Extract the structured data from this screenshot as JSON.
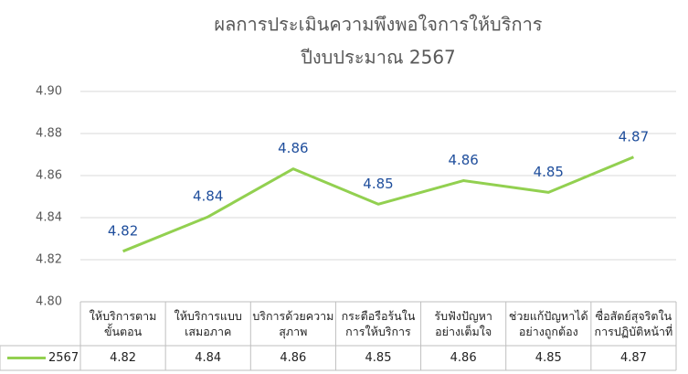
{
  "chart_data": {
    "type": "line",
    "title": "ผลการประเมินความพึงพอใจการให้บริการ",
    "subtitle": "ปีงบประมาณ 2567",
    "categories": [
      "ให้บริการตาม\nขั้นตอน",
      "ให้บริการแบบ\nเสมอภาค",
      "บริการด้วยความ\nสุภาพ",
      "กระตือรือร้นใน\nการให้บริการ",
      "รับฟังปัญหา\nอย่างเต็มใจ",
      "ช่วยแก้ปัญหาได้\nอย่างถูกต้อง",
      "ซื่อสัตย์สุจริตใน\nการปฏิบัติหน้าที่"
    ],
    "series": [
      {
        "name": "2567",
        "color": "#92d050",
        "values": [
          4.824,
          4.8404,
          4.8632,
          4.8464,
          4.8576,
          4.852,
          4.8688
        ],
        "value_labels": [
          "4.82",
          "4.84",
          "4.86",
          "4.85",
          "4.86",
          "4.85",
          "4.87"
        ]
      }
    ],
    "ylim": [
      4.8,
      4.9
    ],
    "yticks": [
      {
        "value": 4.8,
        "label": "4.80"
      },
      4.82,
      4.84,
      4.86,
      4.88,
      {
        "value": 4.9,
        "label": "4.90"
      }
    ],
    "grid": true
  }
}
